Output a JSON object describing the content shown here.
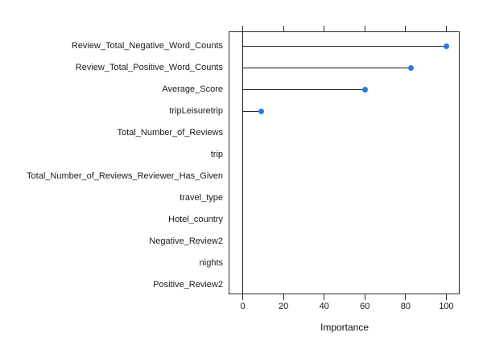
{
  "chart_data": {
    "type": "dotplot",
    "title": "",
    "xlabel": "Importance",
    "ylabel": "",
    "categories": [
      "Review_Total_Negative_Word_Counts",
      "Review_Total_Positive_Word_Counts",
      "Average_Score",
      "tripLeisuretrip",
      "Total_Number_of_Reviews",
      "trip",
      "Total_Number_of_Reviews_Reviewer_Has_Given",
      "travel_type",
      "Hotel_country",
      "Negative_Review2",
      "nights",
      "Positive_Review2"
    ],
    "values": [
      100,
      82.5,
      60,
      9,
      0,
      0,
      0,
      0,
      0,
      0,
      0,
      0
    ],
    "x_ticks": [
      0,
      20,
      40,
      60,
      80,
      100
    ],
    "x_tick_labels": [
      "0",
      "20",
      "40",
      "60",
      "80",
      "100"
    ],
    "xlim": [
      -7,
      106.5
    ],
    "grid": false,
    "legend": null,
    "colors": {
      "dot": "#1e7de8",
      "needle": "#1c1c1c",
      "axis": "#2b2b2b",
      "text": "#1a1a1a",
      "background": "#ffffff"
    }
  }
}
